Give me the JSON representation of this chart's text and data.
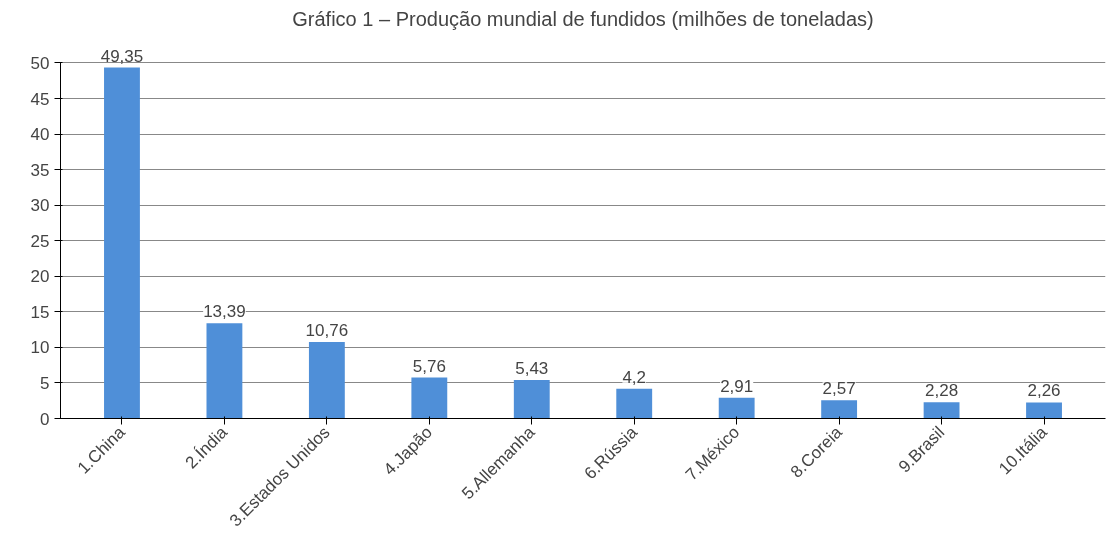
{
  "chart_data": {
    "type": "bar",
    "title": "Gráfico 1 – Produção mundial de fundidos (milhões de toneladas)",
    "categories": [
      "1.China",
      "2.Índia",
      "3.Estados Unidos",
      "4.Japão",
      "5.Allemanha",
      "6.Rússia",
      "7.México",
      "8.Coreia",
      "9.Brasil",
      "10.Itália"
    ],
    "values": [
      49.35,
      13.39,
      10.76,
      5.76,
      5.43,
      4.2,
      2.91,
      2.57,
      2.28,
      2.26
    ],
    "value_labels": [
      "49,35",
      "13,39",
      "10,76",
      "5,76",
      "5,43",
      "4,2",
      "2,91",
      "2,57",
      "2,28",
      "2,26"
    ],
    "color": "#4f8fd8",
    "ylim": [
      0,
      50
    ],
    "yticks": [
      0,
      5,
      10,
      15,
      20,
      25,
      30,
      35,
      40,
      45,
      50
    ],
    "grid": "y"
  }
}
